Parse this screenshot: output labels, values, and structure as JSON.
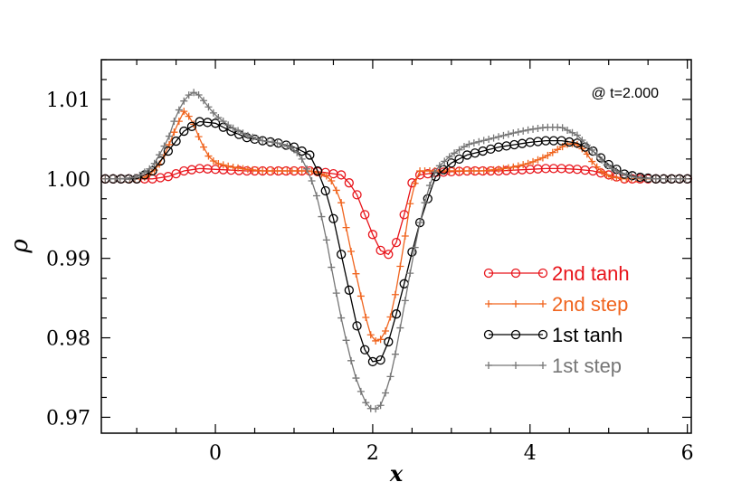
{
  "chart_data": {
    "type": "line",
    "title": "",
    "xlabel": "x",
    "ylabel": "ρ",
    "xlim": [
      -1.45,
      6.05
    ],
    "ylim": [
      0.968,
      1.015
    ],
    "xticks": [
      0,
      2,
      4,
      6
    ],
    "yticks": [
      0.97,
      0.98,
      0.99,
      1.0,
      1.01
    ],
    "ytick_labels": [
      "0.97",
      "0.98",
      "0.99",
      "1.00",
      "1.01"
    ],
    "grid": false,
    "legend_position": "bottom-right",
    "annotation": "@ t=2.000",
    "series": [
      {
        "name": "2nd tanh",
        "color": "#e8141b",
        "marker": "circle",
        "x": [
          -1.4,
          -1.2,
          -1.0,
          -0.8,
          -0.6,
          -0.4,
          -0.2,
          0.0,
          0.2,
          0.4,
          0.6,
          0.8,
          1.0,
          1.2,
          1.4,
          1.6,
          1.7,
          1.8,
          1.9,
          2.0,
          2.1,
          2.2,
          2.3,
          2.4,
          2.5,
          2.6,
          2.8,
          3.0,
          3.2,
          3.4,
          3.6,
          3.8,
          4.0,
          4.2,
          4.4,
          4.6,
          4.8,
          5.0,
          5.2,
          5.4,
          5.6,
          5.8,
          6.0
        ],
        "y": [
          1.0,
          1.0,
          1.0,
          1.0,
          1.0003,
          1.001,
          1.0013,
          1.0012,
          1.0011,
          1.001,
          1.001,
          1.001,
          1.001,
          1.001,
          1.0008,
          1.0005,
          0.9995,
          0.998,
          0.9955,
          0.993,
          0.991,
          0.9905,
          0.992,
          0.9955,
          0.9995,
          1.0005,
          1.0008,
          1.0009,
          1.001,
          1.001,
          1.001,
          1.0011,
          1.0012,
          1.0013,
          1.0013,
          1.0012,
          1.001,
          1.0005,
          1.0,
          1.0,
          1.0,
          1.0,
          1.0
        ]
      },
      {
        "name": "2nd step",
        "color": "#f0641e",
        "marker": "plus",
        "x": [
          -1.4,
          -1.2,
          -1.0,
          -0.9,
          -0.8,
          -0.7,
          -0.6,
          -0.5,
          -0.4,
          -0.3,
          -0.2,
          -0.1,
          0.0,
          0.2,
          0.4,
          0.6,
          0.8,
          1.0,
          1.2,
          1.4,
          1.5,
          1.6,
          1.7,
          1.8,
          1.9,
          2.0,
          2.1,
          2.2,
          2.3,
          2.4,
          2.5,
          2.6,
          2.8,
          3.0,
          3.2,
          3.4,
          3.6,
          3.8,
          4.0,
          4.2,
          4.4,
          4.5,
          4.6,
          4.7,
          4.8,
          4.9,
          5.0,
          5.2,
          5.4,
          5.6,
          5.8,
          6.0
        ],
        "y": [
          1.0,
          1.0,
          1.0,
          1.0002,
          1.0008,
          1.002,
          1.004,
          1.0065,
          1.0085,
          1.0075,
          1.005,
          1.003,
          1.002,
          1.0015,
          1.0012,
          1.001,
          1.001,
          1.001,
          1.001,
          1.0005,
          0.9995,
          0.997,
          0.992,
          0.9875,
          0.983,
          0.9795,
          0.9798,
          0.9815,
          0.986,
          0.992,
          0.9985,
          1.001,
          1.001,
          1.001,
          1.001,
          1.001,
          1.0012,
          1.0015,
          1.002,
          1.0028,
          1.004,
          1.0045,
          1.0043,
          1.0035,
          1.002,
          1.001,
          1.0003,
          1.0,
          1.0,
          1.0,
          1.0,
          1.0
        ]
      },
      {
        "name": "1st  tanh",
        "color": "#000000",
        "marker": "circle",
        "x": [
          -1.4,
          -1.2,
          -1.0,
          -0.8,
          -0.6,
          -0.4,
          -0.2,
          0.0,
          0.2,
          0.4,
          0.6,
          0.8,
          1.0,
          1.2,
          1.3,
          1.4,
          1.5,
          1.6,
          1.7,
          1.8,
          1.9,
          2.0,
          2.1,
          2.2,
          2.3,
          2.4,
          2.5,
          2.6,
          2.7,
          2.8,
          3.0,
          3.2,
          3.4,
          3.6,
          3.8,
          4.0,
          4.2,
          4.4,
          4.6,
          4.8,
          5.0,
          5.2,
          5.4,
          5.6,
          5.8,
          6.0
        ],
        "y": [
          1.0,
          1.0,
          1.0,
          1.001,
          1.0035,
          1.006,
          1.0072,
          1.007,
          1.006,
          1.0052,
          1.0048,
          1.0045,
          1.004,
          1.003,
          1.001,
          0.9985,
          0.995,
          0.9905,
          0.986,
          0.9815,
          0.9785,
          0.977,
          0.9772,
          0.9795,
          0.983,
          0.9868,
          0.9908,
          0.9945,
          0.9975,
          1.0003,
          1.002,
          1.003,
          1.0035,
          1.004,
          1.0043,
          1.0046,
          1.0048,
          1.0048,
          1.0045,
          1.0035,
          1.0018,
          1.0006,
          1.0002,
          1.0,
          1.0,
          1.0
        ]
      },
      {
        "name": "1st  step",
        "color": "#767676",
        "marker": "plus",
        "x": [
          -1.4,
          -1.2,
          -1.0,
          -0.8,
          -0.6,
          -0.5,
          -0.4,
          -0.3,
          -0.2,
          -0.1,
          0.0,
          0.2,
          0.4,
          0.6,
          0.8,
          1.0,
          1.1,
          1.2,
          1.3,
          1.4,
          1.5,
          1.6,
          1.7,
          1.8,
          1.9,
          2.0,
          2.1,
          2.2,
          2.3,
          2.4,
          2.5,
          2.6,
          2.7,
          2.8,
          3.0,
          3.2,
          3.4,
          3.6,
          3.8,
          4.0,
          4.2,
          4.4,
          4.6,
          4.8,
          5.0,
          5.2,
          5.4,
          5.6,
          5.8,
          6.0
        ],
        "y": [
          1.0,
          1.0,
          1.0002,
          1.0015,
          1.005,
          1.008,
          1.0098,
          1.011,
          1.0105,
          1.0092,
          1.008,
          1.0065,
          1.0055,
          1.0048,
          1.0045,
          1.0038,
          1.0025,
          1.0005,
          0.9975,
          0.993,
          0.9875,
          0.9825,
          0.978,
          0.9745,
          0.972,
          0.9708,
          0.9715,
          0.974,
          0.9785,
          0.984,
          0.9895,
          0.9945,
          0.9985,
          1.0012,
          1.003,
          1.0043,
          1.0048,
          1.0053,
          1.0058,
          1.0062,
          1.0065,
          1.0065,
          1.0055,
          1.0035,
          1.0015,
          1.0005,
          1.0001,
          1.0,
          1.0,
          1.0
        ]
      }
    ]
  }
}
